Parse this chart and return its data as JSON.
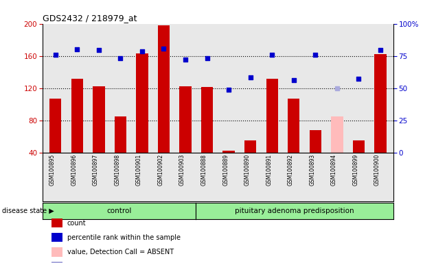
{
  "title": "GDS2432 / 218979_at",
  "samples": [
    "GSM100895",
    "GSM100896",
    "GSM100897",
    "GSM100898",
    "GSM100901",
    "GSM100902",
    "GSM100903",
    "GSM100888",
    "GSM100889",
    "GSM100890",
    "GSM100891",
    "GSM100892",
    "GSM100893",
    "GSM100894",
    "GSM100899",
    "GSM100900"
  ],
  "bar_values": [
    107,
    132,
    122,
    85,
    163,
    198,
    122,
    121,
    42,
    55,
    132,
    107,
    68,
    85,
    55,
    162
  ],
  "bar_colors": [
    "#cc0000",
    "#cc0000",
    "#cc0000",
    "#cc0000",
    "#cc0000",
    "#cc0000",
    "#cc0000",
    "#cc0000",
    "#cc0000",
    "#cc0000",
    "#cc0000",
    "#cc0000",
    "#cc0000",
    "#ffbbbb",
    "#cc0000",
    "#cc0000"
  ],
  "dot_values": [
    161,
    168,
    167,
    157,
    166,
    169,
    155,
    157,
    118,
    133,
    161,
    130,
    161,
    120,
    132,
    167
  ],
  "dot_colors": [
    "#0000cc",
    "#0000cc",
    "#0000cc",
    "#0000cc",
    "#0000cc",
    "#0000cc",
    "#0000cc",
    "#0000cc",
    "#0000cc",
    "#0000cc",
    "#0000cc",
    "#0000cc",
    "#0000cc",
    "#aaaadd",
    "#0000cc",
    "#0000cc"
  ],
  "ylim": [
    40,
    200
  ],
  "yticks": [
    40,
    80,
    120,
    160,
    200
  ],
  "y2ticks_pct": [
    0,
    25,
    50,
    75,
    100
  ],
  "y2labels": [
    "0",
    "25",
    "50",
    "75",
    "100%"
  ],
  "control_count": 7,
  "control_label": "control",
  "disease_label": "pituitary adenoma predisposition",
  "disease_state_label": "disease state",
  "ylabel_color": "#cc0000",
  "y2label_color": "#0000cc",
  "gridlines": [
    80,
    120,
    160
  ],
  "bar_width": 0.55,
  "bg_color": "#e8e8e8",
  "green_color": "#99ee99"
}
